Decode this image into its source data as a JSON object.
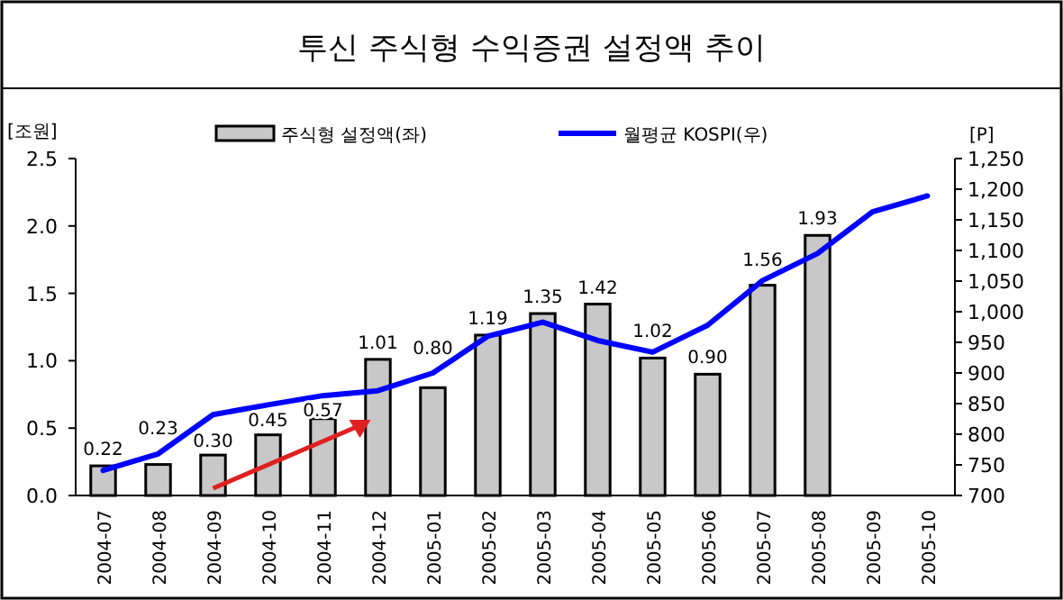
{
  "chart_data": {
    "type": "bar",
    "title": "투신 주식형 수익증권 설정액 추이",
    "ylabel": "[조원]",
    "y2label": "[P]",
    "categories": [
      "2004-07",
      "2004-08",
      "2004-09",
      "2004-10",
      "2004-11",
      "2004-12",
      "2005-01",
      "2005-02",
      "2005-03",
      "2005-04",
      "2005-05",
      "2005-06",
      "2005-07",
      "2005-08",
      "2005-09",
      "2005-10"
    ],
    "series": [
      {
        "name": "주식형 설정액(좌)",
        "color": "#c8c8c8",
        "values": [
          0.22,
          0.23,
          0.3,
          0.45,
          0.57,
          1.01,
          0.8,
          1.19,
          1.35,
          1.42,
          1.02,
          0.9,
          1.56,
          1.93,
          null,
          null
        ],
        "value_labels": [
          "0.22",
          "0.23",
          "0.30",
          "0.45",
          "0.57",
          "1.01",
          "0.80",
          "1.19",
          "1.35",
          "1.42",
          "1.02",
          "0.90",
          "1.56",
          "1.93",
          null,
          null
        ]
      },
      {
        "name": "월평균 KOSPI(우)",
        "type": "line",
        "axis": "y2",
        "color": "#0000ff",
        "values": [
          741,
          768,
          832,
          848,
          863,
          871,
          900,
          960,
          983,
          953,
          934,
          978,
          1051,
          1095,
          1163,
          1189
        ]
      }
    ],
    "ylim": [
      0,
      2.5
    ],
    "yticks": [
      {
        "value": 0,
        "label": "0.0"
      },
      {
        "value": 0.5,
        "label": "0.5"
      },
      {
        "value": 1,
        "label": "1.0"
      },
      {
        "value": 1.5,
        "label": "1.5"
      },
      {
        "value": 2,
        "label": "2.0"
      },
      {
        "value": 2.5,
        "label": "2.5"
      }
    ],
    "y2lim": [
      700,
      1250
    ],
    "y2ticks": [
      700,
      750,
      800,
      850,
      900,
      950,
      {
        "value": 1000,
        "label": "1,000"
      },
      {
        "value": 1050,
        "label": "1,050"
      },
      {
        "value": 1100,
        "label": "1,100"
      },
      {
        "value": 1150,
        "label": "1,150"
      },
      {
        "value": 1200,
        "label": "1,200"
      },
      {
        "value": 1250,
        "label": "1,250"
      }
    ],
    "legend": "top",
    "grid": false,
    "marker": "none",
    "line_style": "solid"
  }
}
